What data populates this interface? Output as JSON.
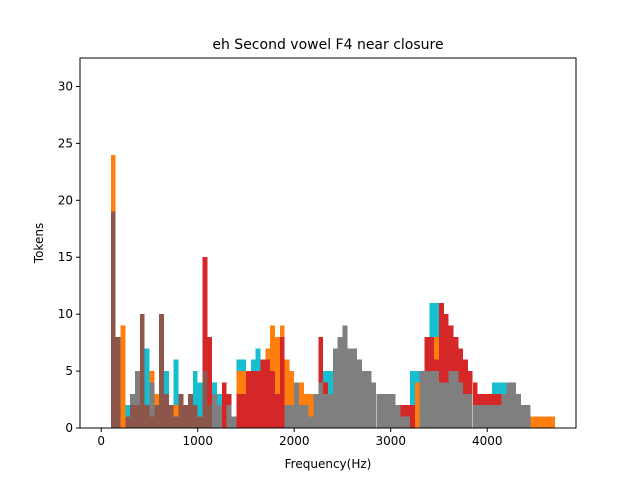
{
  "chart_data": {
    "type": "bar",
    "title": "eh Second vowel F4 near closure",
    "xlabel": "Frequency(Hz)",
    "ylabel": "Tokens",
    "xlim": [
      -220,
      4920
    ],
    "ylim": [
      0,
      32.5
    ],
    "xticks": [
      0,
      1000,
      2000,
      3000,
      4000
    ],
    "yticks": [
      0,
      5,
      10,
      15,
      20,
      25,
      30
    ],
    "grid": false,
    "bin_width": 50,
    "series": [
      {
        "color": "#17becf",
        "bins": [
          [
            200,
            2
          ],
          [
            250,
            2
          ],
          [
            300,
            2
          ],
          [
            350,
            1
          ],
          [
            400,
            2
          ],
          [
            450,
            7
          ],
          [
            500,
            4
          ],
          [
            550,
            3
          ],
          [
            600,
            9
          ],
          [
            650,
            5
          ],
          [
            700,
            2
          ],
          [
            750,
            6
          ],
          [
            800,
            3
          ],
          [
            850,
            1
          ],
          [
            900,
            2
          ],
          [
            950,
            5
          ],
          [
            1000,
            4
          ],
          [
            1050,
            3
          ],
          [
            1100,
            2
          ],
          [
            1150,
            4
          ],
          [
            1200,
            3
          ],
          [
            1300,
            3
          ],
          [
            1400,
            6
          ],
          [
            1450,
            6
          ],
          [
            1550,
            6
          ],
          [
            1600,
            7
          ],
          [
            1650,
            6
          ],
          [
            2250,
            6
          ],
          [
            2300,
            5
          ],
          [
            2350,
            5
          ],
          [
            2400,
            6
          ],
          [
            2450,
            4
          ],
          [
            2500,
            3
          ],
          [
            2550,
            3
          ],
          [
            2600,
            3
          ],
          [
            2700,
            3
          ],
          [
            2800,
            3
          ],
          [
            2850,
            2
          ],
          [
            2950,
            2
          ],
          [
            3000,
            3
          ],
          [
            3050,
            2
          ],
          [
            3100,
            2
          ],
          [
            3200,
            5
          ],
          [
            3250,
            5
          ],
          [
            3300,
            5
          ],
          [
            3350,
            5
          ],
          [
            3400,
            11
          ],
          [
            3450,
            11
          ],
          [
            3500,
            4
          ],
          [
            3550,
            4
          ],
          [
            3600,
            4
          ],
          [
            3650,
            5
          ],
          [
            3700,
            4
          ],
          [
            3750,
            4
          ],
          [
            3800,
            3
          ],
          [
            3850,
            3
          ],
          [
            3900,
            1
          ],
          [
            3950,
            2
          ],
          [
            4000,
            2
          ],
          [
            4050,
            4
          ],
          [
            4100,
            4
          ],
          [
            4150,
            4
          ],
          [
            4200,
            3
          ],
          [
            4250,
            2
          ],
          [
            4300,
            2
          ],
          [
            4400,
            1
          ],
          [
            4450,
            1
          ],
          [
            4650,
            1
          ]
        ]
      },
      {
        "color": "#ff7f0e",
        "bins": [
          [
            100,
            24
          ],
          [
            150,
            3
          ],
          [
            200,
            9
          ],
          [
            300,
            3
          ],
          [
            400,
            2
          ],
          [
            450,
            2
          ],
          [
            500,
            5
          ],
          [
            550,
            3
          ],
          [
            600,
            3
          ],
          [
            700,
            2
          ],
          [
            750,
            2
          ],
          [
            1400,
            5
          ],
          [
            1450,
            5
          ],
          [
            1500,
            5
          ],
          [
            1550,
            4
          ],
          [
            1600,
            5
          ],
          [
            1650,
            5
          ],
          [
            1700,
            7
          ],
          [
            1750,
            9
          ],
          [
            1800,
            8
          ],
          [
            1850,
            9
          ],
          [
            1900,
            6
          ],
          [
            1950,
            5
          ],
          [
            2000,
            4
          ],
          [
            2050,
            4
          ],
          [
            2100,
            3
          ],
          [
            2150,
            3
          ],
          [
            2200,
            2
          ],
          [
            2250,
            2
          ],
          [
            2300,
            2
          ],
          [
            2350,
            2
          ],
          [
            2400,
            2
          ],
          [
            2450,
            2
          ],
          [
            2500,
            2
          ],
          [
            2550,
            2
          ],
          [
            2600,
            2
          ],
          [
            2650,
            2
          ],
          [
            2700,
            2
          ],
          [
            2750,
            2
          ],
          [
            2800,
            2
          ],
          [
            2850,
            2
          ],
          [
            2900,
            2
          ],
          [
            2950,
            2
          ],
          [
            3000,
            2
          ],
          [
            3050,
            2
          ],
          [
            3100,
            2
          ],
          [
            3150,
            2
          ],
          [
            3200,
            2
          ],
          [
            3250,
            4
          ],
          [
            3300,
            4
          ],
          [
            3350,
            7
          ],
          [
            3400,
            8
          ],
          [
            3450,
            8
          ],
          [
            3500,
            9
          ],
          [
            3550,
            9
          ],
          [
            3600,
            8
          ],
          [
            3650,
            7
          ],
          [
            3700,
            7
          ],
          [
            3750,
            6
          ],
          [
            3800,
            5
          ],
          [
            3850,
            3
          ],
          [
            3900,
            2
          ],
          [
            3950,
            3
          ],
          [
            4000,
            3
          ],
          [
            4050,
            3
          ],
          [
            4100,
            3
          ],
          [
            4150,
            2
          ],
          [
            4200,
            2
          ],
          [
            4250,
            2
          ],
          [
            4300,
            2
          ],
          [
            4350,
            1
          ],
          [
            4400,
            1
          ],
          [
            4450,
            1
          ],
          [
            4500,
            1
          ],
          [
            4550,
            1
          ],
          [
            4600,
            1
          ],
          [
            4650,
            1
          ]
        ]
      },
      {
        "color": "#d62728",
        "bins": [
          [
            1050,
            15
          ],
          [
            1100,
            8
          ],
          [
            1150,
            1
          ],
          [
            1250,
            4
          ],
          [
            1300,
            3
          ],
          [
            1350,
            1
          ],
          [
            1400,
            3
          ],
          [
            1450,
            3
          ],
          [
            1500,
            5
          ],
          [
            1550,
            5
          ],
          [
            1600,
            5
          ],
          [
            1650,
            6
          ],
          [
            1700,
            6
          ],
          [
            1750,
            5
          ],
          [
            1800,
            3
          ],
          [
            1850,
            8
          ],
          [
            1900,
            1
          ],
          [
            1950,
            2
          ],
          [
            2000,
            2
          ],
          [
            2250,
            8
          ],
          [
            2300,
            4
          ],
          [
            2400,
            4
          ],
          [
            2450,
            4
          ],
          [
            2500,
            4
          ],
          [
            2550,
            2
          ],
          [
            2600,
            2
          ],
          [
            2650,
            5
          ],
          [
            2700,
            5
          ],
          [
            2750,
            3
          ],
          [
            2800,
            3
          ],
          [
            2850,
            3
          ],
          [
            2900,
            3
          ],
          [
            2950,
            2
          ],
          [
            3000,
            2
          ],
          [
            3050,
            2
          ],
          [
            3100,
            2
          ],
          [
            3150,
            2
          ],
          [
            3200,
            2
          ],
          [
            3350,
            8
          ],
          [
            3400,
            8
          ],
          [
            3450,
            6
          ],
          [
            3500,
            11
          ],
          [
            3550,
            10
          ],
          [
            3600,
            9
          ],
          [
            3650,
            8
          ],
          [
            3700,
            7
          ],
          [
            3750,
            6
          ],
          [
            3800,
            5
          ],
          [
            3850,
            4
          ],
          [
            3900,
            3
          ],
          [
            3950,
            3
          ],
          [
            4000,
            3
          ],
          [
            4050,
            3
          ],
          [
            4100,
            3
          ],
          [
            4150,
            3
          ],
          [
            4200,
            3
          ],
          [
            4250,
            3
          ],
          [
            4300,
            2
          ],
          [
            4350,
            2
          ],
          [
            4400,
            2
          ]
        ]
      },
      {
        "color": "#7f7f7f",
        "bins": [
          [
            250,
            1
          ],
          [
            300,
            3
          ],
          [
            350,
            5
          ],
          [
            400,
            4
          ],
          [
            500,
            4
          ],
          [
            550,
            2
          ],
          [
            600,
            2
          ],
          [
            650,
            1
          ],
          [
            700,
            1
          ],
          [
            750,
            1
          ],
          [
            800,
            3
          ],
          [
            850,
            1
          ],
          [
            900,
            3
          ],
          [
            950,
            1
          ],
          [
            1000,
            1
          ],
          [
            1100,
            2
          ],
          [
            1150,
            3
          ],
          [
            1200,
            2
          ],
          [
            1300,
            2
          ],
          [
            1350,
            1
          ],
          [
            1900,
            2
          ],
          [
            1950,
            2
          ],
          [
            2000,
            4
          ],
          [
            2050,
            2
          ],
          [
            2100,
            2
          ],
          [
            2150,
            1
          ],
          [
            2200,
            3
          ],
          [
            2250,
            4
          ],
          [
            2300,
            3
          ],
          [
            2350,
            3
          ],
          [
            2400,
            7
          ],
          [
            2450,
            8
          ],
          [
            2500,
            9
          ],
          [
            2550,
            7
          ],
          [
            2600,
            7
          ],
          [
            2650,
            6
          ],
          [
            2700,
            5
          ],
          [
            2750,
            5
          ],
          [
            2800,
            4
          ],
          [
            2850,
            3
          ],
          [
            2900,
            3
          ],
          [
            2950,
            3
          ],
          [
            3000,
            3
          ],
          [
            3050,
            2
          ],
          [
            3100,
            1
          ],
          [
            3150,
            1
          ],
          [
            3300,
            5
          ],
          [
            3350,
            5
          ],
          [
            3400,
            5
          ],
          [
            3450,
            5
          ],
          [
            3500,
            4
          ],
          [
            3550,
            4
          ],
          [
            3600,
            5
          ],
          [
            3650,
            5
          ],
          [
            3700,
            4
          ],
          [
            3750,
            3
          ],
          [
            3800,
            3
          ],
          [
            3850,
            2
          ],
          [
            3900,
            2
          ],
          [
            3950,
            2
          ],
          [
            4000,
            2
          ],
          [
            4050,
            2
          ],
          [
            4100,
            2
          ],
          [
            4150,
            3
          ],
          [
            4200,
            4
          ],
          [
            4250,
            4
          ],
          [
            4300,
            3
          ],
          [
            4350,
            2
          ],
          [
            4400,
            2
          ]
        ]
      },
      {
        "color": "#8c564b",
        "bins": [
          [
            100,
            19
          ],
          [
            150,
            8
          ],
          [
            250,
            1
          ],
          [
            300,
            2
          ],
          [
            350,
            2
          ],
          [
            400,
            10
          ],
          [
            450,
            2
          ],
          [
            500,
            1
          ],
          [
            550,
            2
          ],
          [
            600,
            10
          ],
          [
            650,
            3
          ],
          [
            700,
            2
          ],
          [
            750,
            1
          ],
          [
            800,
            3
          ],
          [
            850,
            2
          ],
          [
            900,
            3
          ],
          [
            950,
            2
          ],
          [
            1000,
            1
          ],
          [
            1050,
            5
          ],
          [
            1100,
            2
          ]
        ]
      }
    ]
  }
}
